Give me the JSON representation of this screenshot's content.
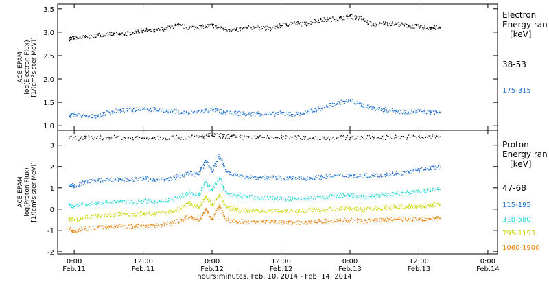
{
  "chart_data": [
    {
      "type": "scatter",
      "panel": "electron",
      "ylabel_lines": [
        "ACE EPAM",
        "log(Electron Flux)",
        "[1/(cm²s ster MeV)]"
      ],
      "ylim": [
        0.9,
        3.6
      ],
      "yticks": [
        1.0,
        1.5,
        2.0,
        2.5,
        3.0,
        3.5
      ],
      "ytick_labels": [
        "1.0",
        "1.5",
        "2.0",
        "2.5",
        "3.0",
        "3.5"
      ],
      "legend_title_lines": [
        "Electron",
        "Energy ran",
        "[keV]"
      ],
      "series": [
        {
          "name": "38-53",
          "color": "#000000",
          "x": [
            10.96,
            11.0,
            11.08,
            11.17,
            11.25,
            11.33,
            11.42,
            11.5,
            11.58,
            11.67,
            11.75,
            11.83,
            11.92,
            12.0,
            12.08,
            12.17,
            12.25,
            12.33,
            12.42,
            12.5,
            12.58,
            12.67,
            12.75,
            12.83,
            12.92,
            13.0,
            13.08,
            13.17,
            13.25,
            13.33,
            13.42,
            13.5,
            13.58,
            13.65
          ],
          "y": [
            2.87,
            2.88,
            2.9,
            2.95,
            2.97,
            2.96,
            3.0,
            3.05,
            3.03,
            3.1,
            3.15,
            3.1,
            3.12,
            3.15,
            3.08,
            3.05,
            3.1,
            3.12,
            3.08,
            3.15,
            3.2,
            3.18,
            3.25,
            3.28,
            3.3,
            3.35,
            3.3,
            3.15,
            3.2,
            3.18,
            3.15,
            3.12,
            3.1,
            3.1
          ]
        },
        {
          "name": "175-315",
          "color": "#1a6fd0",
          "x": [
            10.96,
            11.0,
            11.08,
            11.17,
            11.25,
            11.33,
            11.42,
            11.5,
            11.58,
            11.67,
            11.75,
            11.83,
            11.92,
            12.0,
            12.08,
            12.17,
            12.25,
            12.33,
            12.42,
            12.5,
            12.58,
            12.67,
            12.75,
            12.83,
            12.92,
            13.0,
            13.08,
            13.17,
            13.25,
            13.33,
            13.42,
            13.5,
            13.58,
            13.65
          ],
          "y": [
            1.22,
            1.25,
            1.2,
            1.22,
            1.3,
            1.33,
            1.35,
            1.38,
            1.35,
            1.33,
            1.3,
            1.28,
            1.32,
            1.35,
            1.3,
            1.28,
            1.25,
            1.27,
            1.25,
            1.28,
            1.25,
            1.28,
            1.35,
            1.42,
            1.5,
            1.55,
            1.45,
            1.38,
            1.35,
            1.32,
            1.3,
            1.32,
            1.3,
            1.3
          ]
        }
      ]
    },
    {
      "type": "scatter",
      "panel": "proton",
      "ylabel_lines": [
        "ACE EPAM",
        "log(Proton Flux)",
        "[1/(cm²s ster MeV)]"
      ],
      "ylim": [
        -2.1,
        3.7
      ],
      "yticks": [
        -2,
        -1,
        0,
        1,
        2,
        3
      ],
      "ytick_labels": [
        "-2",
        "-1",
        "0",
        "1",
        "2",
        "3"
      ],
      "legend_title_lines": [
        "Proton",
        "Energy ran",
        "[keV]"
      ],
      "series": [
        {
          "name": "47-68",
          "color": "#000000",
          "x": [
            10.96,
            11.08,
            11.25,
            11.42,
            11.58,
            11.75,
            11.92,
            12.0,
            12.08,
            12.17,
            12.33,
            12.5,
            12.67,
            12.83,
            13.0,
            13.17,
            13.33,
            13.5,
            13.65
          ],
          "y": [
            3.35,
            3.37,
            3.38,
            3.38,
            3.38,
            3.38,
            3.42,
            3.5,
            3.45,
            3.4,
            3.38,
            3.38,
            3.37,
            3.38,
            3.38,
            3.38,
            3.4,
            3.4,
            3.42
          ]
        },
        {
          "name": "115-195",
          "color": "#1a6fd0",
          "x": [
            10.96,
            11.0,
            11.08,
            11.17,
            11.25,
            11.33,
            11.42,
            11.5,
            11.58,
            11.67,
            11.75,
            11.83,
            11.9,
            11.95,
            12.0,
            12.05,
            12.1,
            12.17,
            12.25,
            12.33,
            12.42,
            12.5,
            12.58,
            12.67,
            12.75,
            12.83,
            12.92,
            13.0,
            13.08,
            13.17,
            13.25,
            13.33,
            13.42,
            13.5,
            13.58,
            13.65
          ],
          "y": [
            1.15,
            1.1,
            1.3,
            1.35,
            1.4,
            1.42,
            1.4,
            1.45,
            1.4,
            1.4,
            1.55,
            1.7,
            1.65,
            2.3,
            1.8,
            2.5,
            1.8,
            1.6,
            1.55,
            1.5,
            1.5,
            1.48,
            1.45,
            1.45,
            1.5,
            1.55,
            1.6,
            1.6,
            1.58,
            1.6,
            1.65,
            1.7,
            1.75,
            1.85,
            1.95,
            2.0
          ]
        },
        {
          "name": "310-580",
          "color": "#22d6d6",
          "x": [
            10.96,
            11.0,
            11.08,
            11.17,
            11.25,
            11.33,
            11.42,
            11.5,
            11.58,
            11.67,
            11.75,
            11.83,
            11.9,
            11.95,
            12.0,
            12.05,
            12.1,
            12.17,
            12.25,
            12.33,
            12.42,
            12.5,
            12.58,
            12.67,
            12.75,
            12.83,
            12.92,
            13.0,
            13.08,
            13.17,
            13.25,
            13.33,
            13.42,
            13.5,
            13.58,
            13.65
          ],
          "y": [
            0.2,
            0.15,
            0.25,
            0.3,
            0.35,
            0.38,
            0.35,
            0.4,
            0.38,
            0.4,
            0.55,
            0.8,
            0.7,
            1.3,
            0.9,
            1.5,
            0.8,
            0.65,
            0.6,
            0.55,
            0.55,
            0.5,
            0.5,
            0.5,
            0.55,
            0.6,
            0.65,
            0.65,
            0.6,
            0.62,
            0.68,
            0.75,
            0.8,
            0.85,
            0.9,
            0.95
          ]
        },
        {
          "name": "795-1193",
          "color": "#c8d400",
          "x": [
            10.96,
            11.0,
            11.08,
            11.17,
            11.25,
            11.33,
            11.42,
            11.5,
            11.58,
            11.67,
            11.75,
            11.83,
            11.9,
            11.95,
            12.0,
            12.05,
            12.1,
            12.17,
            12.25,
            12.33,
            12.42,
            12.5,
            12.58,
            12.67,
            12.75,
            12.83,
            12.92,
            13.0,
            13.08,
            13.17,
            13.25,
            13.33,
            13.42,
            13.5,
            13.58,
            13.65
          ],
          "y": [
            -0.45,
            -0.5,
            -0.35,
            -0.3,
            -0.25,
            -0.2,
            -0.25,
            -0.2,
            -0.2,
            -0.15,
            0.0,
            0.3,
            0.1,
            0.6,
            0.2,
            0.7,
            0.1,
            0.0,
            -0.05,
            -0.05,
            -0.05,
            -0.05,
            -0.08,
            -0.05,
            -0.02,
            0.0,
            0.05,
            0.05,
            0.0,
            0.02,
            0.08,
            0.12,
            0.15,
            0.15,
            0.2,
            0.25
          ]
        },
        {
          "name": "1060-1900",
          "color": "#e8820c",
          "x": [
            10.96,
            11.0,
            11.08,
            11.17,
            11.25,
            11.33,
            11.42,
            11.5,
            11.58,
            11.67,
            11.75,
            11.83,
            11.9,
            11.95,
            12.0,
            12.05,
            12.1,
            12.17,
            12.25,
            12.33,
            12.42,
            12.5,
            12.58,
            12.67,
            12.75,
            12.83,
            12.92,
            13.0,
            13.08,
            13.17,
            13.25,
            13.33,
            13.42,
            13.5,
            13.58,
            13.65
          ],
          "y": [
            -0.9,
            -1.0,
            -0.9,
            -0.85,
            -0.8,
            -0.78,
            -0.8,
            -0.75,
            -0.75,
            -0.7,
            -0.55,
            -0.35,
            -0.5,
            0.0,
            -0.45,
            0.2,
            -0.5,
            -0.55,
            -0.58,
            -0.58,
            -0.58,
            -0.6,
            -0.62,
            -0.6,
            -0.55,
            -0.55,
            -0.5,
            -0.5,
            -0.55,
            -0.52,
            -0.5,
            -0.45,
            -0.45,
            -0.45,
            -0.42,
            -0.4
          ]
        }
      ]
    }
  ],
  "x_axis": {
    "xlim": [
      10.88,
      14.07
    ],
    "tick_values": [
      11.0,
      11.5,
      12.0,
      12.5,
      13.0,
      13.5,
      14.0
    ],
    "tick_times": [
      "0:00",
      "12:00",
      "0:00",
      "12:00",
      "0:00",
      "12:00",
      "0:00"
    ],
    "tick_dates": [
      "Feb.11",
      "Feb.11",
      "Feb.12",
      "Feb.12",
      "Feb.13",
      "Feb.13",
      "Feb.14"
    ],
    "xlabel": "hours:minutes, Feb. 10, 2014 - Feb. 14, 2014"
  }
}
